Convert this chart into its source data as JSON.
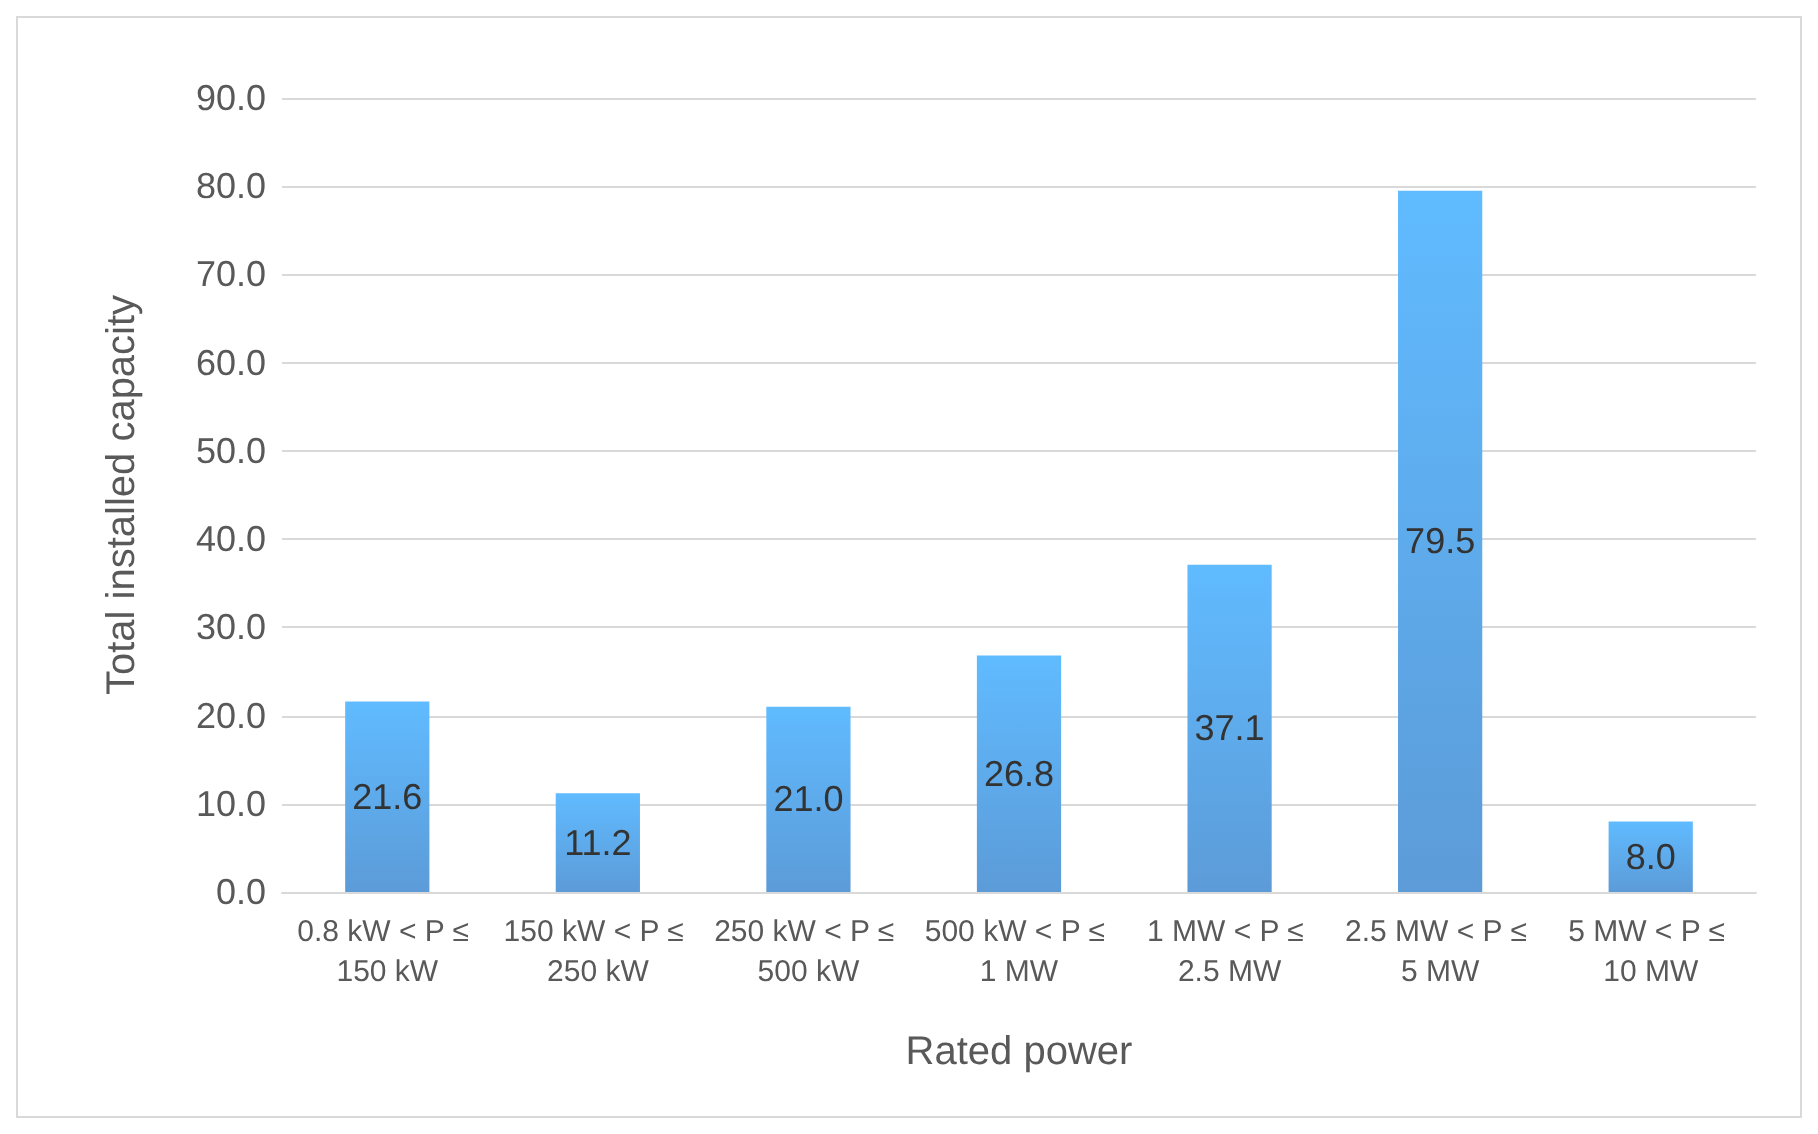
{
  "chart_data": {
    "type": "bar",
    "xlabel": "Rated power",
    "ylabel": "Total installed capacity",
    "categories": [
      "0.8 kW < P ≤ 150 kW",
      "150 kW < P ≤ 250 kW",
      "250 kW < P ≤ 500 kW",
      "500 kW < P ≤ 1 MW",
      "1 MW < P ≤ 2.5 MW",
      "2.5 MW < P ≤ 5 MW",
      "5 MW < P ≤ 10 MW"
    ],
    "values": [
      21.6,
      11.2,
      21.0,
      26.8,
      37.1,
      79.5,
      8.0
    ],
    "value_labels": [
      "21.6",
      "11.2",
      "21.0",
      "26.8",
      "37.1",
      "79.5",
      "8.0"
    ],
    "color": "#4a90d4",
    "ylim": [
      0,
      90
    ],
    "yticks": [
      {
        "value": 0,
        "label": "0.0"
      },
      {
        "value": 10,
        "label": "10.0"
      },
      {
        "value": 20,
        "label": "20.0"
      },
      {
        "value": 30,
        "label": "30.0"
      },
      {
        "value": 40,
        "label": "40.0"
      },
      {
        "value": 50,
        "label": "50.0"
      },
      {
        "value": 60,
        "label": "60.0"
      },
      {
        "value": 70,
        "label": "70.0"
      },
      {
        "value": 80,
        "label": "80.0"
      },
      {
        "value": 90,
        "label": "90.0"
      }
    ],
    "grid": "y"
  }
}
